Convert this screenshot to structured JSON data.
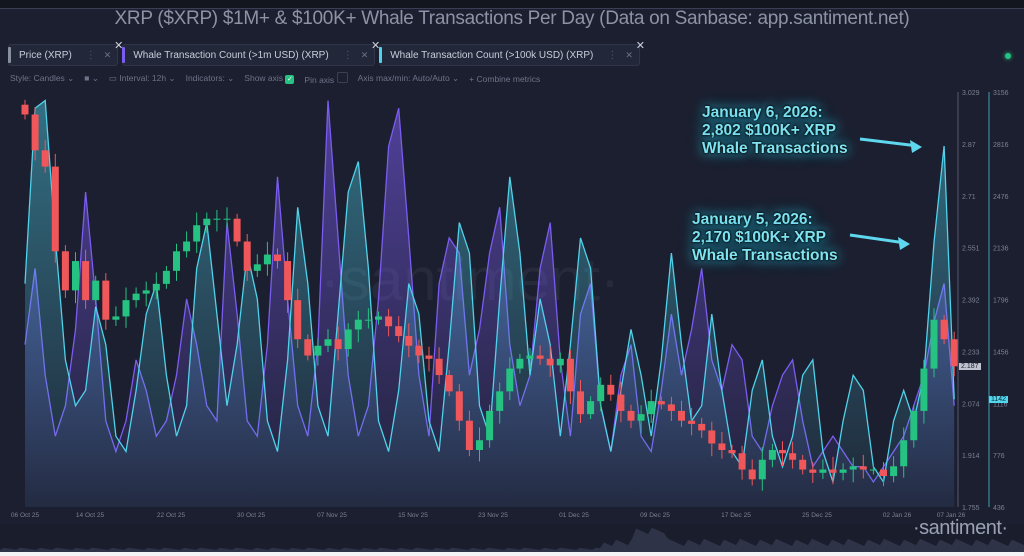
{
  "title": "XRP ($XRP) $1M+ & $100K+ Whale Transactions Per Day (Data on Sanbase: app.santiment.net)",
  "tabs": [
    {
      "label": "Price (XRP)",
      "color": "#8a8f9f"
    },
    {
      "label": "Whale Transaction Count (>1m USD) (XRP)",
      "color": "#7b5cf0"
    },
    {
      "label": "Whale Transaction Count (>100k USD) (XRP)",
      "color": "#4fd2ea"
    }
  ],
  "toolbar": {
    "style": "Style: Candles",
    "interval": "Interval: 12h",
    "indicators": "Indicators:",
    "show_axis": "Show axis",
    "pin_axis": "Pin axis",
    "axis_maxmin": "Axis max/min: Auto/Auto",
    "combine": "+ Combine metrics"
  },
  "annotations": [
    {
      "lines": [
        "January 6, 2026:",
        "2,802 $100K+ XRP",
        "Whale Transactions"
      ]
    },
    {
      "lines": [
        "January 5, 2026:",
        "2,170 $100K+ XRP",
        "Whale Transactions"
      ]
    }
  ],
  "logo": "·santiment·",
  "colors": {
    "up": "#26c281",
    "down": "#f0575a",
    "whale_1m": "#7b5cf0",
    "whale_100k": "#4fd2ea",
    "background": "#1c1f2f"
  },
  "chart_data": {
    "type": "line",
    "price_axis": {
      "ticks": [
        "3.029",
        "2.87",
        "2.71",
        "2.551",
        "2.392",
        "2.233",
        "2.074",
        "1.914",
        "1.755"
      ],
      "range": [
        1.755,
        3.029
      ],
      "current": "2.187"
    },
    "count_axis": {
      "ticks": [
        "3156",
        "2816",
        "2476",
        "2136",
        "1796",
        "1456",
        "1116",
        "776",
        "436"
      ],
      "range": [
        436,
        3156
      ],
      "current": "1142"
    },
    "x_ticks": [
      "06 Oct 25",
      "14 Oct 25",
      "22 Oct 25",
      "30 Oct 25",
      "07 Nov 25",
      "15 Nov 25",
      "23 Nov 25",
      "01 Dec 25",
      "09 Dec 25",
      "17 Dec 25",
      "25 Dec 25",
      "02 Jan 26",
      "07 Jan 26"
    ],
    "x_start": "2025-10-06",
    "x_end": "2026-01-07",
    "price_close": [
      2.96,
      2.85,
      2.8,
      2.54,
      2.42,
      2.51,
      2.39,
      2.45,
      2.33,
      2.34,
      2.39,
      2.41,
      2.42,
      2.44,
      2.48,
      2.54,
      2.57,
      2.62,
      2.64,
      2.64,
      2.64,
      2.57,
      2.48,
      2.5,
      2.53,
      2.51,
      2.39,
      2.27,
      2.22,
      2.25,
      2.27,
      2.24,
      2.3,
      2.33,
      2.33,
      2.34,
      2.31,
      2.28,
      2.25,
      2.22,
      2.21,
      2.16,
      2.11,
      2.02,
      1.93,
      1.96,
      2.05,
      2.11,
      2.18,
      2.21,
      2.22,
      2.21,
      2.19,
      2.21,
      2.11,
      2.04,
      2.08,
      2.13,
      2.1,
      2.05,
      2.02,
      2.04,
      2.08,
      2.07,
      2.05,
      2.02,
      2.01,
      1.99,
      1.95,
      1.93,
      1.92,
      1.87,
      1.84,
      1.9,
      1.93,
      1.92,
      1.9,
      1.87,
      1.86,
      1.87,
      1.86,
      1.87,
      1.88,
      1.87,
      1.87,
      1.85,
      1.88,
      1.96,
      2.05,
      2.18,
      2.33,
      2.27,
      2.187
    ],
    "series": [
      {
        "name": "Whale Transaction Count (>100k USD) (XRP)",
        "values": [
          1900,
          3050,
          3100,
          2200,
          1400,
          1100,
          1200,
          1750,
          1500,
          900,
          800,
          1200,
          1700,
          1900,
          1300,
          900,
          1100,
          2000,
          2300,
          1700,
          1100,
          1500,
          2100,
          1800,
          1000,
          800,
          1400,
          2400,
          1900,
          1100,
          900,
          1700,
          2500,
          2700,
          2000,
          1000,
          800,
          1200,
          1900,
          1700,
          1000,
          800,
          1500,
          2300,
          2100,
          1100,
          900,
          1800,
          2600,
          2100,
          1300,
          1800,
          1500,
          900,
          1500,
          2200,
          2000,
          1100,
          800,
          1200,
          1600,
          1300,
          900,
          1400,
          2100,
          1500,
          1000,
          1100,
          1700,
          1200,
          800,
          700,
          1200,
          1400,
          900,
          700,
          900,
          1300,
          1400,
          800,
          600,
          1000,
          1300,
          1200,
          700,
          600,
          1000,
          1200,
          1000,
          1300,
          2170,
          2802,
          1142
        ]
      },
      {
        "name": "Whale Transaction Count (>1m USD) (XRP)",
        "values": [
          1500,
          2000,
          1300,
          900,
          1100,
          1600,
          2500,
          1800,
          1000,
          800,
          1000,
          1400,
          1200,
          900,
          1000,
          1300,
          1800,
          1500,
          1100,
          1000,
          2300,
          1700,
          1000,
          900,
          1500,
          2600,
          1800,
          1100,
          900,
          1500,
          3100,
          2200,
          1300,
          900,
          1100,
          1800,
          2800,
          3050,
          2200,
          1300,
          900,
          1900,
          2200,
          2100,
          1300,
          1600,
          2100,
          2400,
          1500,
          1100,
          1300,
          2000,
          2300,
          1400,
          900,
          1700,
          1900,
          1100,
          800,
          1300,
          1500,
          900,
          800,
          1200,
          1700,
          1300,
          1600,
          2000,
          1400,
          1200,
          1500,
          1400,
          900,
          800,
          1100,
          1300,
          1400,
          1000,
          700,
          800,
          900,
          800,
          700,
          700,
          600,
          700,
          800,
          900,
          1100,
          1300,
          1650,
          1900,
          1100
        ]
      }
    ],
    "grid": false
  }
}
